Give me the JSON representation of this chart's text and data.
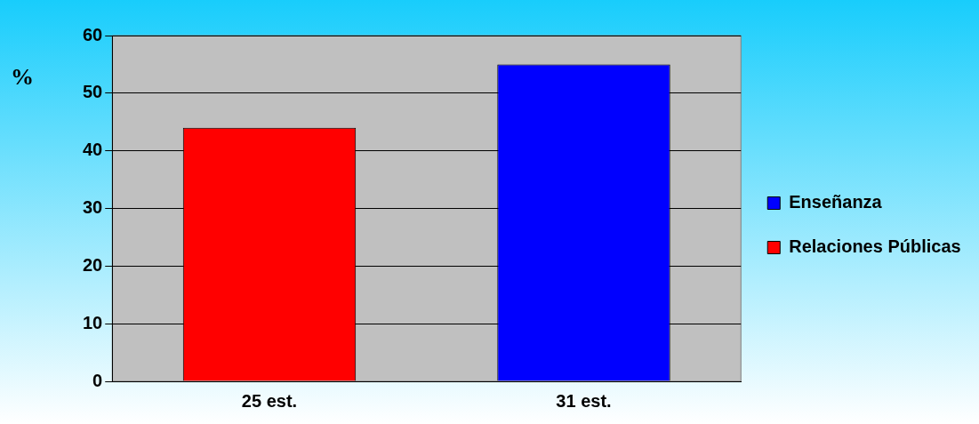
{
  "chart_data": {
    "type": "bar",
    "ylabel": "%",
    "categories": [
      "25 est.",
      "31 est."
    ],
    "series": [
      {
        "name": "Enseñanza",
        "color": "#0000ff",
        "values": [
          null,
          55
        ]
      },
      {
        "name": "Relaciones Públicas",
        "color": "#ff0000",
        "values": [
          44,
          null
        ]
      }
    ],
    "ylim": [
      0,
      60
    ],
    "yticks": [
      0,
      10,
      20,
      30,
      40,
      50,
      60
    ],
    "grid": "y",
    "legend": "right"
  }
}
